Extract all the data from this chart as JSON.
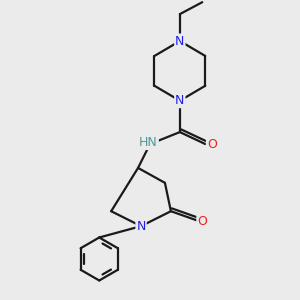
{
  "bg_color": "#ebebeb",
  "bond_color": "#1a1a1a",
  "N_color": "#2020ee",
  "O_color": "#ee2020",
  "NH_color": "#4a9a9a",
  "font_size": 9,
  "line_width": 1.6,
  "figsize": [
    3.0,
    3.0
  ],
  "dpi": 100,
  "xlim": [
    0,
    10
  ],
  "ylim": [
    0,
    10
  ]
}
